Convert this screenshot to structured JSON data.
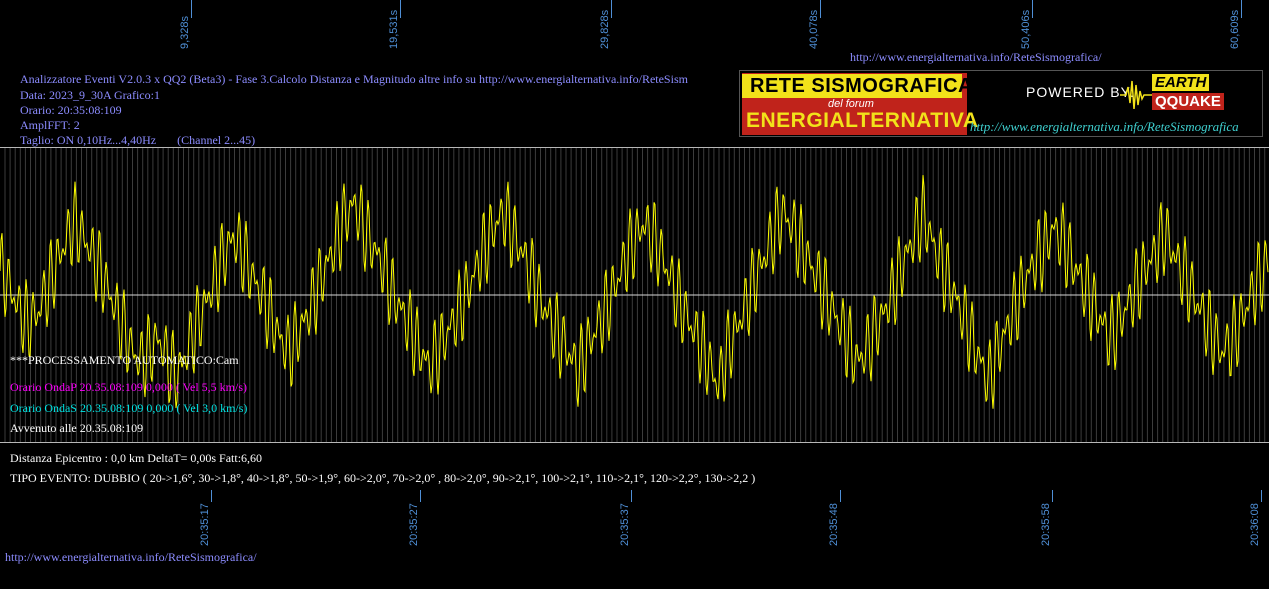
{
  "header": {
    "title_line": "Analizzatore Eventi V2.0.3 x QQ2 (Beta3) - Fase 3.Calcolo Distanza e Magnitudo altre info su http://www.energialternativa.info/ReteSism",
    "data_line": "Data: 2023_9_30A Grafico:1",
    "orario_line": "Orario: 20:35:08:109",
    "amplfft_line": "AmplFFT: 2",
    "taglio_line": "Taglio: ON 0,10Hz...4,40Hz       (Channel 2...45)",
    "top_url": "http://www.energialternativa.info/ReteSismografica/"
  },
  "logo": {
    "line1": "RETE SISMOGRAFICA",
    "line2": "del forum",
    "line3": "ENERGIALTERNATIVA",
    "powered": "POWERED BY:",
    "brand1": "EARTH",
    "brand2": "QQUAKE",
    "url": "http://www.energialternativa.info/ReteSismografica"
  },
  "processing": {
    "auto_label": "***PROCESSAMENTO AUTOMATICO:Cam",
    "onda_p": "Orario OndaP 20.35.08:109  0,000 ( Vel 5,5 km/s)",
    "onda_s": "Orario OndaS 20.35.08:109  0,000 ( Vel 3,0 km/s)",
    "avvenuto": "Avvenuto alle 20.35.08:109",
    "distanza": "Distanza Epicentro : 0,0 km DeltaT= 0,00s  Fatt:6,60",
    "tipo_evento": "TIPO EVENTO: DUBBIO ( 20->1,6°, 30->1,8°, 40->1,8°, 50->1,9°, 60->2,0°, 70->2,0° , 80->2,0°, 90->2,1°, 100->2,1°, 110->2,1°, 120->2,2°, 130->2,2 )"
  },
  "footer": {
    "url": "http://www.energialternativa.info/ReteSismografica/"
  },
  "colors": {
    "trace": "#ffff00",
    "ticks": "#4f8fd6",
    "onda_p": "#ff00ff",
    "onda_s": "#00e5e5",
    "text": "#8c8cff",
    "white": "#ffffff"
  },
  "chart_data": {
    "type": "line",
    "top_axis_ticks": [
      "9,328s",
      "19,531s",
      "29,828s",
      "40,078s",
      "50,406s",
      "60,609s"
    ],
    "top_axis_values": [
      9.328,
      19.531,
      29.828,
      40.078,
      50.406,
      60.609
    ],
    "bottom_axis_ticks": [
      "20:35:17",
      "20:35:27",
      "20:35:37",
      "20:35:48",
      "20:35:58",
      "20:36:08"
    ],
    "x_range_seconds": [
      0,
      62
    ],
    "y_range": [
      -1,
      1
    ],
    "series": [
      {
        "values": [
          0.25,
          0.1,
          -0.15,
          -0.3,
          -0.2,
          0.05,
          0.3,
          0.55,
          0.75,
          0.6,
          0.4,
          0.2,
          -0.05,
          -0.3,
          -0.55,
          -0.7,
          -0.6,
          -0.45,
          -0.7,
          -0.85,
          -0.6,
          -0.35,
          -0.1,
          0.15,
          0.4,
          0.6,
          0.45,
          0.2,
          0.0,
          -0.2,
          -0.45,
          -0.6,
          -0.4,
          -0.2,
          0.05,
          0.3,
          0.55,
          0.8,
          0.95,
          0.7,
          0.5,
          0.3,
          0.05,
          -0.15,
          -0.35,
          -0.55,
          -0.75,
          -0.6,
          -0.4,
          -0.2,
          0.0,
          0.25,
          0.5,
          0.7,
          0.85,
          0.65,
          0.45,
          0.2,
          -0.05,
          -0.25,
          -0.45,
          -0.6,
          -0.8,
          -0.55,
          -0.35,
          -0.15,
          0.1,
          0.35,
          0.55,
          0.75,
          0.6,
          0.4,
          0.15,
          -0.1,
          -0.3,
          -0.5,
          -0.7,
          -0.95,
          -0.6,
          -0.35,
          -0.1,
          0.15,
          0.4,
          0.65,
          0.85,
          0.7,
          0.5,
          0.3,
          0.1,
          -0.1,
          -0.3,
          -0.5,
          -0.7,
          -0.55,
          -0.35,
          -0.15,
          0.1,
          0.35,
          0.6,
          0.85,
          0.55,
          0.3,
          0.1,
          -0.15,
          -0.4,
          -0.65,
          -0.9,
          -0.6,
          -0.35,
          -0.1,
          0.15,
          0.35,
          0.5,
          0.7,
          0.55,
          0.35,
          0.15,
          -0.05,
          -0.25,
          -0.45,
          -0.3,
          -0.1,
          0.1,
          0.3,
          0.45,
          0.65,
          0.4,
          0.2,
          0.0,
          -0.2,
          -0.4,
          -0.6,
          -0.5,
          -0.3,
          -0.05,
          0.15,
          0.35
        ]
      }
    ]
  }
}
